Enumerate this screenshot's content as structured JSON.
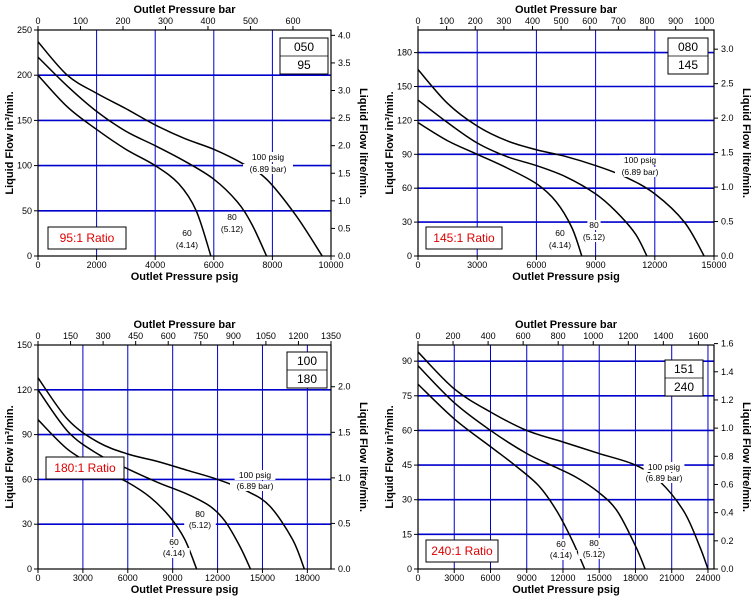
{
  "colors": {
    "grid": "#0000cc",
    "curve": "#000000",
    "ratio_text": "#e00000",
    "frame": "#000000"
  },
  "chart_data": [
    {
      "type": "line",
      "model": [
        "050",
        "95"
      ],
      "ratio_label": "95:1 Ratio",
      "xlabel": "Outlet Pressure psig",
      "x2label": "Outlet Pressure bar",
      "ylabel": "Liquid Flow in³/min.",
      "y2label": "Liquid Flow litre/min.",
      "xlim": [
        0,
        10000
      ],
      "ylim": [
        0,
        250
      ],
      "xticks": [
        0,
        2000,
        4000,
        6000,
        8000,
        10000
      ],
      "yticks": [
        0,
        50,
        100,
        150,
        200,
        250
      ],
      "x2lim": [
        0,
        689.5
      ],
      "x2ticks": [
        0,
        100,
        200,
        300,
        400,
        500,
        600
      ],
      "y2lim": [
        0,
        4.097
      ],
      "y2ticks": [
        "0.0",
        "0.5",
        "1.0",
        "1.5",
        "2.0",
        "2.5",
        "3.0",
        "3.5",
        "4.0"
      ],
      "grid": true,
      "series": [
        {
          "name": "100 psig (6.89 bar)",
          "x": [
            0,
            1000,
            2000,
            3000,
            4000,
            5000,
            6000,
            7000,
            7800,
            8800,
            9700
          ],
          "y": [
            237,
            200,
            180,
            163,
            145,
            130,
            118,
            102,
            85,
            45,
            0
          ]
        },
        {
          "name": "80 (5.12)",
          "x": [
            0,
            1000,
            2000,
            3000,
            4000,
            5000,
            6000,
            6800,
            7300,
            7800
          ],
          "y": [
            220,
            188,
            160,
            138,
            122,
            105,
            85,
            60,
            35,
            0
          ]
        },
        {
          "name": "60 (4.14)",
          "x": [
            0,
            1000,
            2000,
            3000,
            4000,
            4800,
            5400,
            5900
          ],
          "y": [
            200,
            165,
            140,
            118,
            100,
            80,
            50,
            0
          ]
        }
      ],
      "annotations": [
        {
          "text": "100 psig",
          "x": 8200,
          "y": 106
        },
        {
          "text": "(6.89 bar)",
          "x": 8200,
          "y": 94
        },
        {
          "text": "80",
          "x": 6700,
          "y": 42
        },
        {
          "text": "(5.12)",
          "x": 6700,
          "y": 30
        },
        {
          "text": "60",
          "x": 5100,
          "y": 22
        },
        {
          "text": "(4.14)",
          "x": 5100,
          "y": 10
        }
      ]
    },
    {
      "type": "line",
      "model": [
        "080",
        "145"
      ],
      "ratio_label": "145:1 Ratio",
      "xlabel": "Outlet Pressure psig",
      "x2label": "Outlet Pressure bar",
      "ylabel": "Liquid Flow in³/min.",
      "y2label": "Liquid Flow litre/min.",
      "xlim": [
        0,
        15000
      ],
      "ylim": [
        0,
        200
      ],
      "xticks": [
        0,
        3000,
        6000,
        9000,
        12000,
        15000
      ],
      "yticks": [
        0,
        30,
        60,
        90,
        120,
        150,
        180
      ],
      "x2lim": [
        0,
        1034
      ],
      "x2ticks": [
        0,
        100,
        200,
        300,
        400,
        500,
        600,
        700,
        800,
        900,
        1000
      ],
      "y2lim": [
        0,
        3.278
      ],
      "y2ticks": [
        "0.0",
        "0.5",
        "1.0",
        "1.5",
        "2.0",
        "2.5",
        "3.0"
      ],
      "grid": true,
      "series": [
        {
          "name": "100 psig (6.89 bar)",
          "x": [
            0,
            1500,
            3000,
            4500,
            6000,
            7500,
            9000,
            10500,
            12000,
            13500,
            14500
          ],
          "y": [
            165,
            135,
            115,
            102,
            94,
            88,
            80,
            70,
            55,
            30,
            0
          ]
        },
        {
          "name": "80 (5.12)",
          "x": [
            0,
            1500,
            3000,
            4500,
            6000,
            7500,
            9000,
            10000,
            11000,
            11600
          ],
          "y": [
            138,
            118,
            100,
            88,
            80,
            70,
            55,
            40,
            20,
            0
          ]
        },
        {
          "name": "60 (4.14)",
          "x": [
            0,
            1500,
            3000,
            4500,
            6000,
            7000,
            7800,
            8300
          ],
          "y": [
            118,
            102,
            90,
            78,
            64,
            48,
            25,
            0
          ]
        }
      ],
      "annotations": [
        {
          "text": "100 psig",
          "x": 11000,
          "y": 80
        },
        {
          "text": "(6.89 bar)",
          "x": 11000,
          "y": 71
        },
        {
          "text": "80",
          "x": 8700,
          "y": 45
        },
        {
          "text": "(5.12)",
          "x": 8700,
          "y": 36
        },
        {
          "text": "60",
          "x": 7100,
          "y": 17
        },
        {
          "text": "(4.14)",
          "x": 7100,
          "y": 8
        }
      ]
    },
    {
      "type": "line",
      "model": [
        "100",
        "180"
      ],
      "ratio_label": "180:1 Ratio",
      "xlabel": "Outlet Pressure psig",
      "x2label": "Outlet Pressure bar",
      "ylabel": "Liquid Flow in³/min.",
      "y2label": "Liquid Flow litre/min.",
      "xlim": [
        0,
        19580
      ],
      "ylim": [
        0,
        150
      ],
      "xticks": [
        0,
        3000,
        6000,
        9000,
        12000,
        15000,
        18000
      ],
      "yticks": [
        0,
        30,
        60,
        90,
        120,
        150
      ],
      "x2lim": [
        0,
        1350
      ],
      "x2ticks": [
        0,
        150,
        300,
        450,
        600,
        750,
        900,
        1050,
        1200,
        1350
      ],
      "y2lim": [
        0,
        2.458
      ],
      "y2ticks": [
        "0.0",
        "0.5",
        "1.0",
        "1.5",
        "2.0"
      ],
      "grid": true,
      "series": [
        {
          "name": "100 psig (6.89 bar)",
          "x": [
            0,
            2000,
            4000,
            6000,
            8000,
            10000,
            12000,
            14000,
            15500,
            17000,
            17800
          ],
          "y": [
            128,
            100,
            85,
            77,
            72,
            66,
            60,
            52,
            42,
            20,
            0
          ]
        },
        {
          "name": "80 (5.12)",
          "x": [
            0,
            2000,
            4000,
            6000,
            8000,
            10000,
            11500,
            12500,
            13500,
            14200
          ],
          "y": [
            120,
            92,
            77,
            67,
            58,
            50,
            42,
            32,
            15,
            0
          ]
        },
        {
          "name": "60 (4.14)",
          "x": [
            0,
            2000,
            4000,
            6000,
            7500,
            8800,
            9800,
            10600
          ],
          "y": [
            100,
            80,
            68,
            58,
            48,
            35,
            20,
            0
          ]
        }
      ],
      "annotations": [
        {
          "text": "100 psig",
          "x": 15000,
          "y": 63
        },
        {
          "text": "(6.89 bar)",
          "x": 15000,
          "y": 57
        },
        {
          "text": "80",
          "x": 11800,
          "y": 37
        },
        {
          "text": "(5.12)",
          "x": 11800,
          "y": 31
        },
        {
          "text": "60",
          "x": 9400,
          "y": 18
        },
        {
          "text": "(4.14)",
          "x": 9400,
          "y": 12
        }
      ]
    },
    {
      "type": "line",
      "model": [
        "151",
        "240"
      ],
      "ratio_label": "240:1 Ratio",
      "xlabel": "Outlet Pressure psig",
      "x2label": "Outlet Pressure bar",
      "ylabel": "Liquid Flow in³/min.",
      "y2label": "Liquid Flow litre/min.",
      "xlim": [
        0,
        24500
      ],
      "ylim": [
        0,
        97
      ],
      "xticks": [
        0,
        3000,
        6000,
        9000,
        12000,
        15000,
        18000,
        21000,
        24000
      ],
      "yticks": [
        0,
        15,
        30,
        45,
        60,
        75,
        90
      ],
      "x2lim": [
        0,
        1689
      ],
      "x2ticks": [
        0,
        200,
        400,
        600,
        800,
        1000,
        1200,
        1400,
        1600
      ],
      "y2lim": [
        0,
        1.59
      ],
      "y2ticks": [
        "0.0",
        "0.2",
        "0.4",
        "0.6",
        "0.8",
        "1.0",
        "1.2",
        "1.4",
        "1.6"
      ],
      "grid": true,
      "series": [
        {
          "name": "100 psig (6.89 bar)",
          "x": [
            0,
            3000,
            6000,
            9000,
            12000,
            15000,
            18000,
            20000,
            22000,
            23300,
            24000
          ],
          "y": [
            94,
            78,
            68,
            60,
            55,
            50,
            45,
            38,
            25,
            10,
            0
          ]
        },
        {
          "name": "80 (5.12)",
          "x": [
            0,
            3000,
            6000,
            9000,
            11000,
            13000,
            15000,
            16500,
            18000,
            18800
          ],
          "y": [
            88,
            72,
            60,
            50,
            45,
            40,
            33,
            25,
            10,
            0
          ]
        },
        {
          "name": "60 (4.14)",
          "x": [
            0,
            3000,
            6000,
            8000,
            10000,
            11500,
            12800,
            13800
          ],
          "y": [
            80,
            65,
            53,
            45,
            36,
            25,
            12,
            0
          ]
        }
      ],
      "annotations": [
        {
          "text": "100 psig",
          "x": 20500,
          "y": 45
        },
        {
          "text": "(6.89 bar)",
          "x": 20500,
          "y": 41
        },
        {
          "text": "80",
          "x": 15100,
          "y": 28
        },
        {
          "text": "(5.12)",
          "x": 15100,
          "y": 24
        },
        {
          "text": "60",
          "x": 11300,
          "y": 12
        },
        {
          "text": "(4.14)",
          "x": 11300,
          "y": 8
        }
      ]
    }
  ]
}
